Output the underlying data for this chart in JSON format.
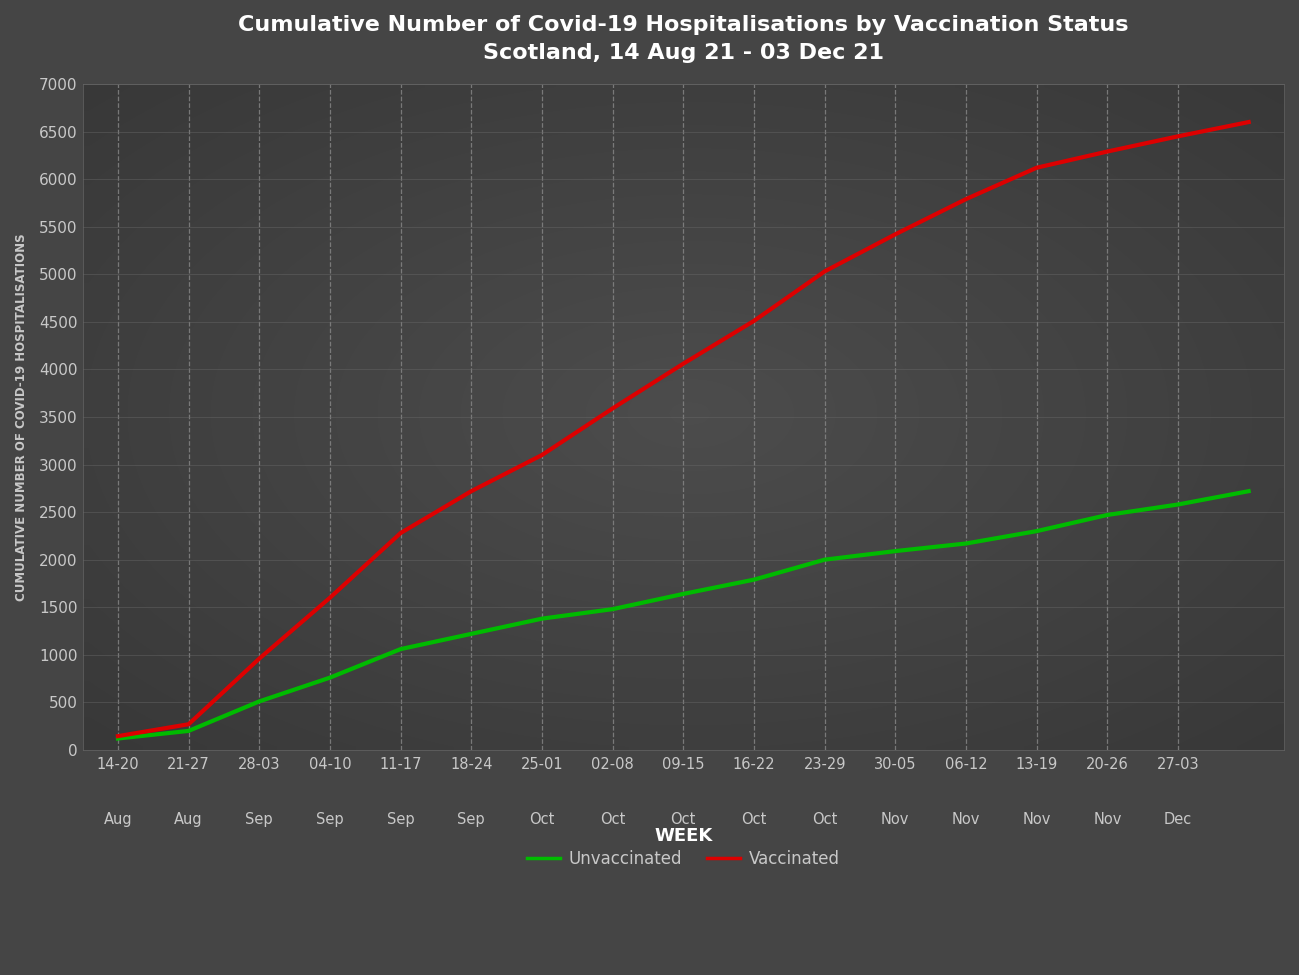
{
  "title_line1": "Cumulative Number of Covid-19 Hospitalisations by Vaccination Status",
  "title_line2": "Scotland, 14 Aug 21 - 03 Dec 21",
  "xlabel": "WEEK",
  "ylabel": "CUMULATIVE NUMBER OF COVID-19 HOSPITALISATIONS",
  "background_color": "#454545",
  "plot_bg_color": "#4a4a4a",
  "tick_labels_top": [
    "14-20",
    "21-27",
    "28-03",
    "04-10",
    "11-17",
    "18-24",
    "25-01",
    "02-08",
    "09-15",
    "16-22",
    "23-29",
    "30-05",
    "06-12",
    "13-19",
    "20-26",
    "27-03"
  ],
  "tick_labels_bot": [
    "Aug",
    "Aug",
    "Sep",
    "Sep",
    "Sep",
    "Sep",
    "Oct",
    "Oct",
    "Oct",
    "Oct",
    "Oct",
    "Nov",
    "Nov",
    "Nov",
    "Nov",
    "Dec"
  ],
  "unvaccinated": [
    120,
    200,
    510,
    760,
    1060,
    1220,
    1380,
    1480,
    1640,
    1790,
    2000,
    2090,
    2170,
    2300,
    2470,
    2580,
    2720
  ],
  "vaccinated": [
    145,
    270,
    960,
    1600,
    2280,
    2720,
    3100,
    3590,
    4060,
    4510,
    5030,
    5420,
    5790,
    6120,
    6290,
    6450,
    6600
  ],
  "ylim": [
    0,
    7000
  ],
  "yticks": [
    0,
    500,
    1000,
    1500,
    2000,
    2500,
    3000,
    3500,
    4000,
    4500,
    5000,
    5500,
    6000,
    6500,
    7000
  ],
  "line_color_unvaccinated": "#00bb00",
  "line_color_vaccinated": "#dd0000",
  "grid_h_color": "#6a6a6a",
  "grid_v_color": "#888888",
  "text_color": "#c8c8c8",
  "title_color": "#ffffff",
  "legend_label_unvaccinated": "Unvaccinated",
  "legend_label_vaccinated": "Vaccinated",
  "line_width": 3.0
}
